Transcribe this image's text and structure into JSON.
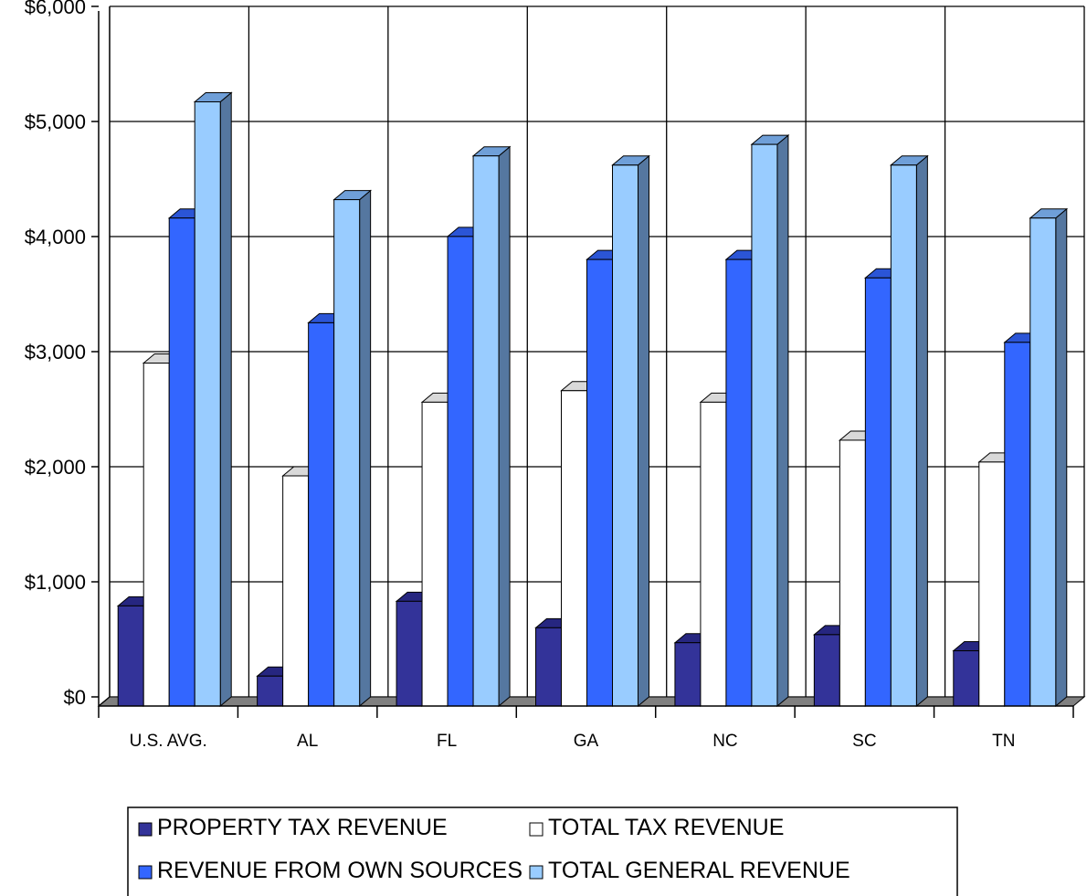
{
  "chart_data": {
    "type": "bar",
    "title": "",
    "xlabel": "",
    "ylabel": "",
    "ylim": [
      0,
      6000
    ],
    "y_ticks": [
      {
        "value": 0,
        "label": "$0"
      },
      {
        "value": 1000,
        "label": "$1,000"
      },
      {
        "value": 2000,
        "label": "$2,000"
      },
      {
        "value": 3000,
        "label": "$3,000"
      },
      {
        "value": 4000,
        "label": "$4,000"
      },
      {
        "value": 5000,
        "label": "$5,000"
      },
      {
        "value": 6000,
        "label": "$6,000"
      }
    ],
    "grid": true,
    "three_d": true,
    "legend_position": "bottom",
    "categories": [
      "U.S. AVG.",
      "AL",
      "FL",
      "GA",
      "NC",
      "SC",
      "TN"
    ],
    "series": [
      {
        "name": "PROPERTY TAX REVENUE",
        "color": "#333399",
        "values": [
          870,
          260,
          910,
          680,
          550,
          620,
          480
        ]
      },
      {
        "name": "TOTAL TAX REVENUE",
        "color": "#ffffff",
        "values": [
          2980,
          2000,
          2640,
          2740,
          2640,
          2310,
          2120
        ]
      },
      {
        "name": "REVENUE FROM OWN SOURCES",
        "color": "#3366ff",
        "values": [
          4240,
          3330,
          4080,
          3880,
          3880,
          3720,
          3160
        ]
      },
      {
        "name": "TOTAL GENERAL REVENUE",
        "color": "#99ccff",
        "values": [
          5250,
          4400,
          4780,
          4700,
          4880,
          4700,
          4240
        ]
      }
    ]
  }
}
